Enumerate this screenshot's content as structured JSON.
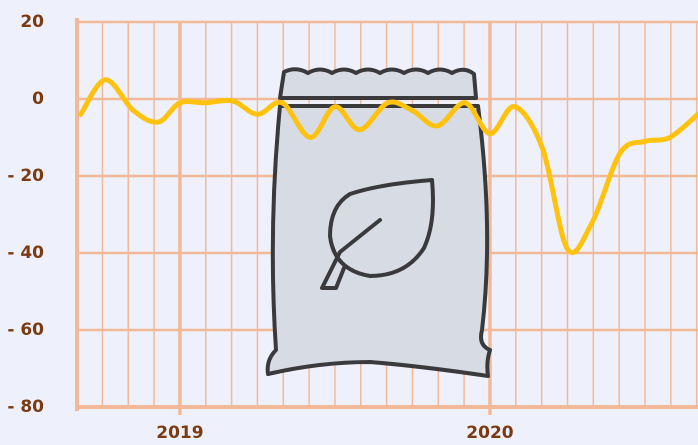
{
  "chart_data": {
    "type": "line",
    "x": [
      2018.68,
      2018.76,
      2018.85,
      2018.93,
      2019.0,
      2019.08,
      2019.17,
      2019.25,
      2019.33,
      2019.42,
      2019.5,
      2019.58,
      2019.67,
      2019.75,
      2019.83,
      2019.92,
      2020.0,
      2020.08,
      2020.17,
      2020.25,
      2020.33,
      2020.42,
      2020.5,
      2020.58,
      2020.67
    ],
    "series": [
      {
        "color": "#ffc20e",
        "values": [
          -4,
          5,
          -3,
          -6,
          -1,
          -1,
          -0.5,
          -4,
          -1,
          -10,
          -2,
          -8,
          -1,
          -3,
          -7,
          -1,
          -9,
          -2,
          -13,
          -39,
          -32,
          -14,
          -11,
          -10,
          -4
        ]
      }
    ],
    "xlim": [
      2018.668,
      2020.671
    ],
    "xticks": [
      2019,
      2020
    ],
    "ylim": [
      -80,
      20
    ],
    "yticks": [
      20,
      0,
      {
        "value": -20,
        "label": "- 20"
      },
      {
        "value": -40,
        "label": "- 40"
      },
      {
        "value": -60,
        "label": "- 60"
      },
      {
        "value": -80,
        "label": "- 80"
      }
    ],
    "grid": true
  }
}
